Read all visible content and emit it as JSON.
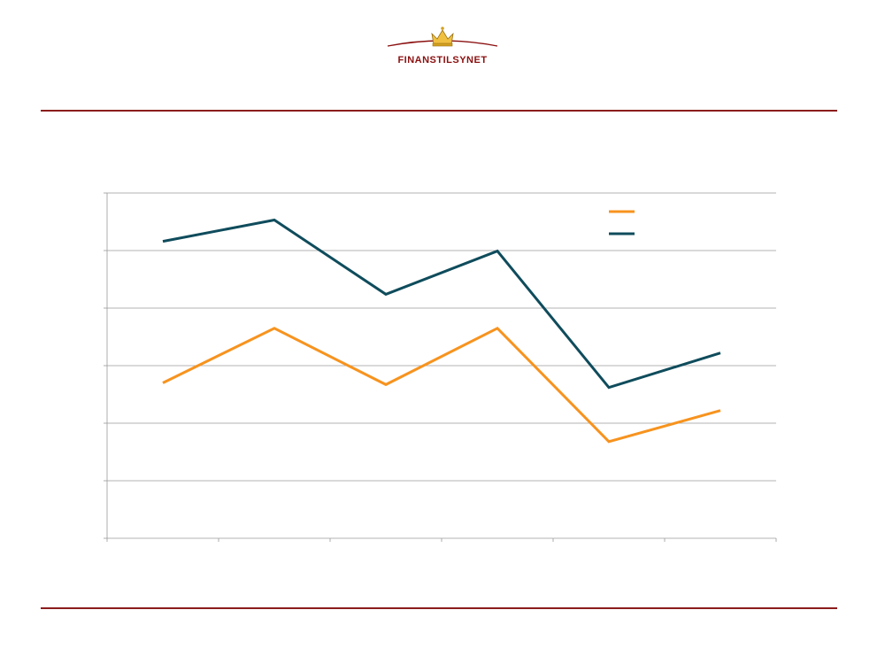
{
  "header": {
    "brand": "Finanstilsynet",
    "brand_color": "#8b1010",
    "rule_color": "#8b1c1c"
  },
  "chart_data": {
    "type": "line",
    "categories": [
      "",
      "",
      "",
      "",
      "",
      ""
    ],
    "ylim": [
      0,
      6
    ],
    "grid": true,
    "legend_position": "top-right",
    "series": [
      {
        "color": "#f7931e",
        "values": [
          2.7,
          3.65,
          2.67,
          3.65,
          1.68,
          2.22
        ]
      },
      {
        "color": "#0f4c5c",
        "values": [
          5.16,
          5.53,
          4.24,
          4.99,
          2.62,
          3.22
        ]
      }
    ]
  }
}
